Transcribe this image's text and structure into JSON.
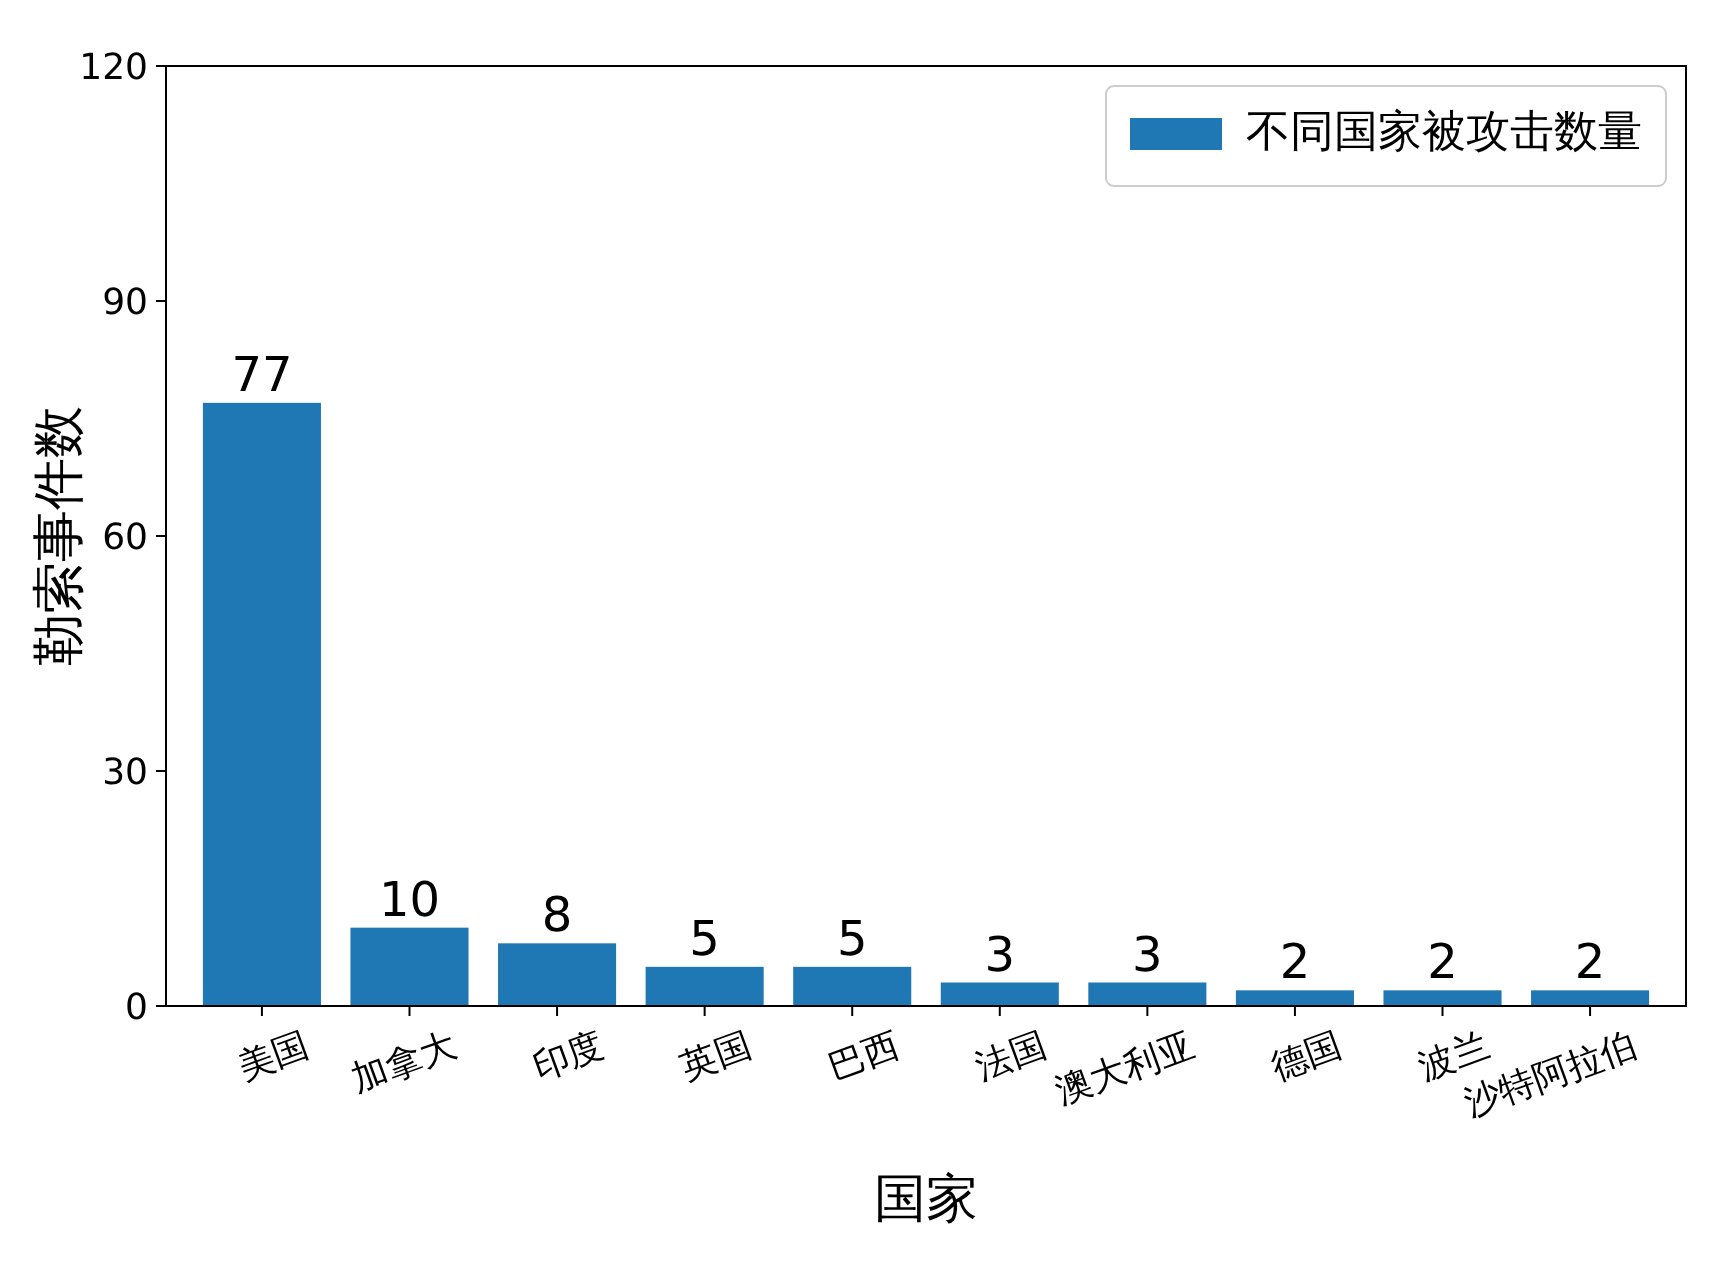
{
  "chart_data": {
    "type": "bar",
    "xlabel": "国家",
    "ylabel": "勒索事件数",
    "categories": [
      "美国",
      "加拿大",
      "印度",
      "英国",
      "巴西",
      "法国",
      "澳大利亚",
      "德国",
      "波兰",
      "沙特阿拉伯"
    ],
    "series": [
      {
        "name": "不同国家被攻击数量",
        "color": "#1f77b4",
        "values": [
          77,
          10,
          8,
          5,
          5,
          3,
          3,
          2,
          2,
          2
        ]
      }
    ],
    "ylim": [
      0,
      120
    ],
    "yticks": [
      0,
      30,
      60,
      90,
      120
    ],
    "data_labels": true,
    "legend": "top right",
    "grid": false
  }
}
